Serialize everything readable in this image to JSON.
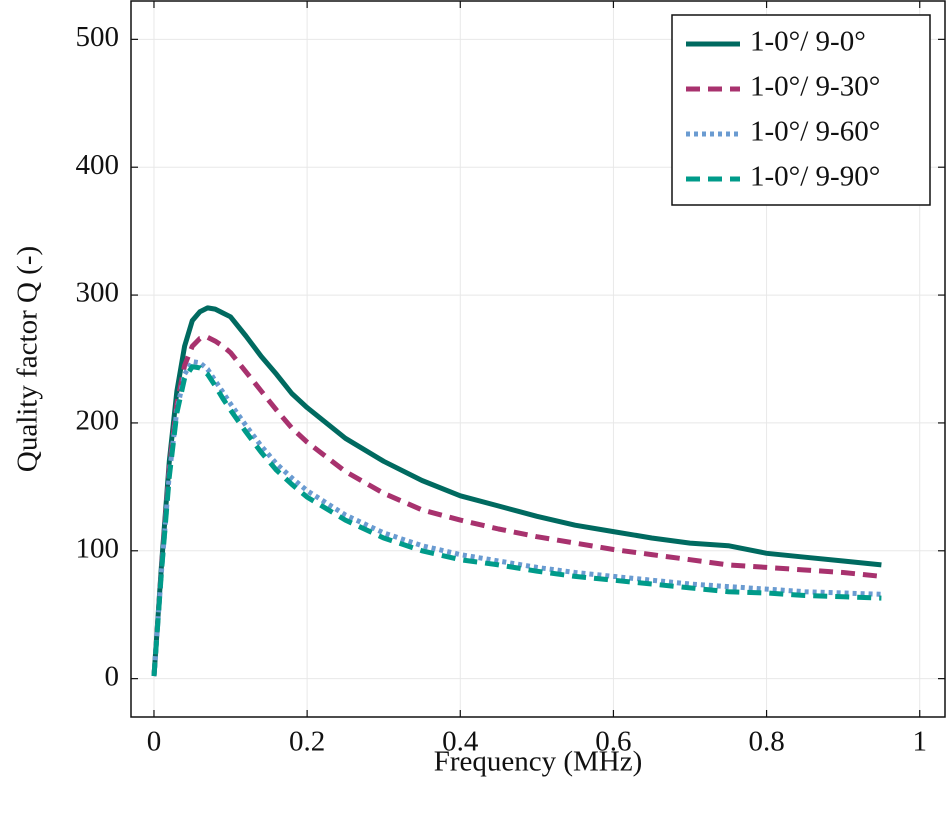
{
  "chart_data": {
    "type": "line",
    "xlabel": "Frequency (MHz)",
    "ylabel": "Quality factor Q (-)",
    "x": [
      0,
      0.01,
      0.02,
      0.03,
      0.04,
      0.05,
      0.06,
      0.07,
      0.08,
      0.09,
      0.1,
      0.12,
      0.14,
      0.16,
      0.18,
      0.2,
      0.25,
      0.3,
      0.35,
      0.4,
      0.45,
      0.5,
      0.55,
      0.6,
      0.65,
      0.7,
      0.75,
      0.8,
      0.85,
      0.9,
      0.95
    ],
    "series": [
      {
        "name": "1-0°/ 9-0°",
        "color": "#006a60",
        "dash": "solid",
        "values": [
          2,
          90,
          170,
          225,
          260,
          280,
          287,
          290,
          289,
          286,
          283,
          268,
          252,
          238,
          223,
          212,
          188,
          170,
          155,
          143,
          135,
          127,
          120,
          115,
          110,
          106,
          104,
          98,
          95,
          92,
          89
        ]
      },
      {
        "name": "1-0°/ 9-30°",
        "color": "#a8326e",
        "dash": "dashed",
        "values": [
          2,
          88,
          165,
          215,
          245,
          260,
          266,
          267,
          264,
          260,
          255,
          240,
          225,
          210,
          196,
          185,
          162,
          145,
          132,
          124,
          117,
          111,
          106,
          101,
          97,
          93,
          89,
          87,
          85,
          83,
          80
        ]
      },
      {
        "name": "1-0°/ 9-60°",
        "color": "#6a9bd1",
        "dash": "dotted",
        "values": [
          2,
          85,
          160,
          210,
          238,
          248,
          247,
          242,
          233,
          224,
          215,
          198,
          182,
          168,
          157,
          147,
          128,
          114,
          104,
          97,
          92,
          87,
          83,
          80,
          77,
          74,
          72,
          70,
          68,
          67,
          66
        ]
      },
      {
        "name": "1-0°/ 9-90°",
        "color": "#009b8a",
        "dash": "dashed",
        "values": [
          2,
          85,
          158,
          208,
          235,
          244,
          243,
          238,
          229,
          219,
          210,
          193,
          177,
          163,
          152,
          142,
          124,
          110,
          100,
          93,
          89,
          84,
          80,
          77,
          74,
          71,
          68,
          67,
          65,
          64,
          63
        ]
      }
    ],
    "xlim": [
      -0.03,
      1.033
    ],
    "ylim": [
      -30,
      530
    ],
    "xticks": [
      0,
      0.2,
      0.4,
      0.6,
      0.8,
      1
    ],
    "yticks": [
      0,
      100,
      200,
      300,
      400,
      500
    ],
    "grid": true,
    "legend": "upper-right"
  }
}
